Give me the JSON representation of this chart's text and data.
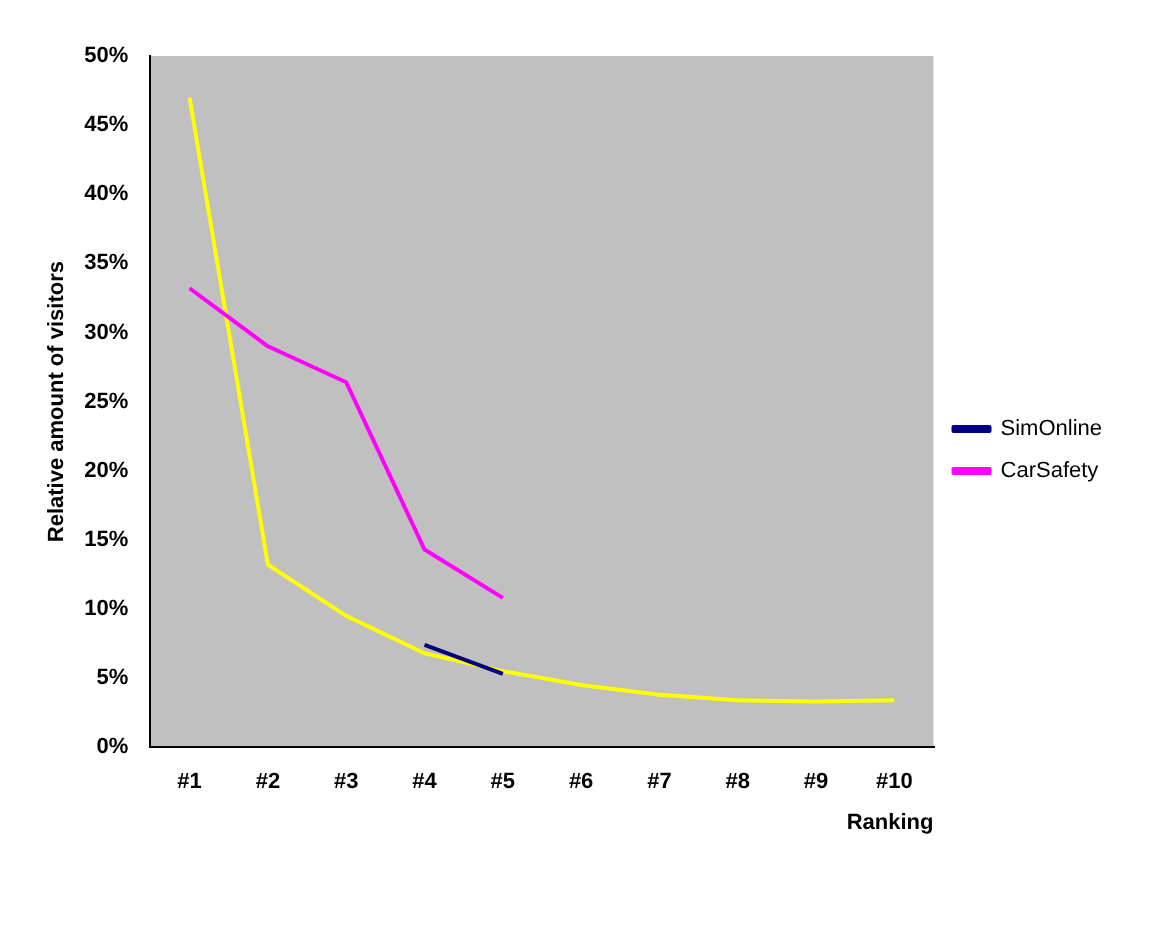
{
  "chart_data": {
    "type": "line",
    "xlabel": "Ranking",
    "ylabel": "Relative amount of visitors",
    "categories": [
      "#1",
      "#2",
      "#3",
      "#4",
      "#5",
      "#6",
      "#7",
      "#8",
      "#9",
      "#10"
    ],
    "series": [
      {
        "name": "SimOnline",
        "color": "#000080",
        "values": [
          null,
          null,
          null,
          7.4,
          5.3,
          null,
          null,
          null,
          null,
          null
        ]
      },
      {
        "name": "CarSafety",
        "color": "#ff00ff",
        "values": [
          33.2,
          29,
          26.4,
          14.3,
          10.8,
          null,
          null,
          null,
          null,
          null
        ]
      },
      {
        "color": "#ffff00",
        "values": [
          47,
          13.2,
          9.5,
          6.8,
          5.5,
          4.5,
          3.8,
          3.4,
          3.3,
          3.4
        ]
      }
    ],
    "ylim": [
      0,
      50
    ],
    "yticks": [
      {
        "value": 0,
        "label": "0%"
      },
      {
        "value": 5,
        "label": "5%"
      },
      {
        "value": 10,
        "label": "10%"
      },
      {
        "value": 15,
        "label": "15%"
      },
      {
        "value": 20,
        "label": "20%"
      },
      {
        "value": 25,
        "label": "25%"
      },
      {
        "value": 30,
        "label": "30%"
      },
      {
        "value": 35,
        "label": "35%"
      },
      {
        "value": 40,
        "label": "40%"
      },
      {
        "value": 45,
        "label": "45%"
      },
      {
        "value": 50,
        "label": "50%"
      }
    ],
    "grid": false,
    "legend": "right",
    "marker": "none",
    "line_style": "solid"
  }
}
